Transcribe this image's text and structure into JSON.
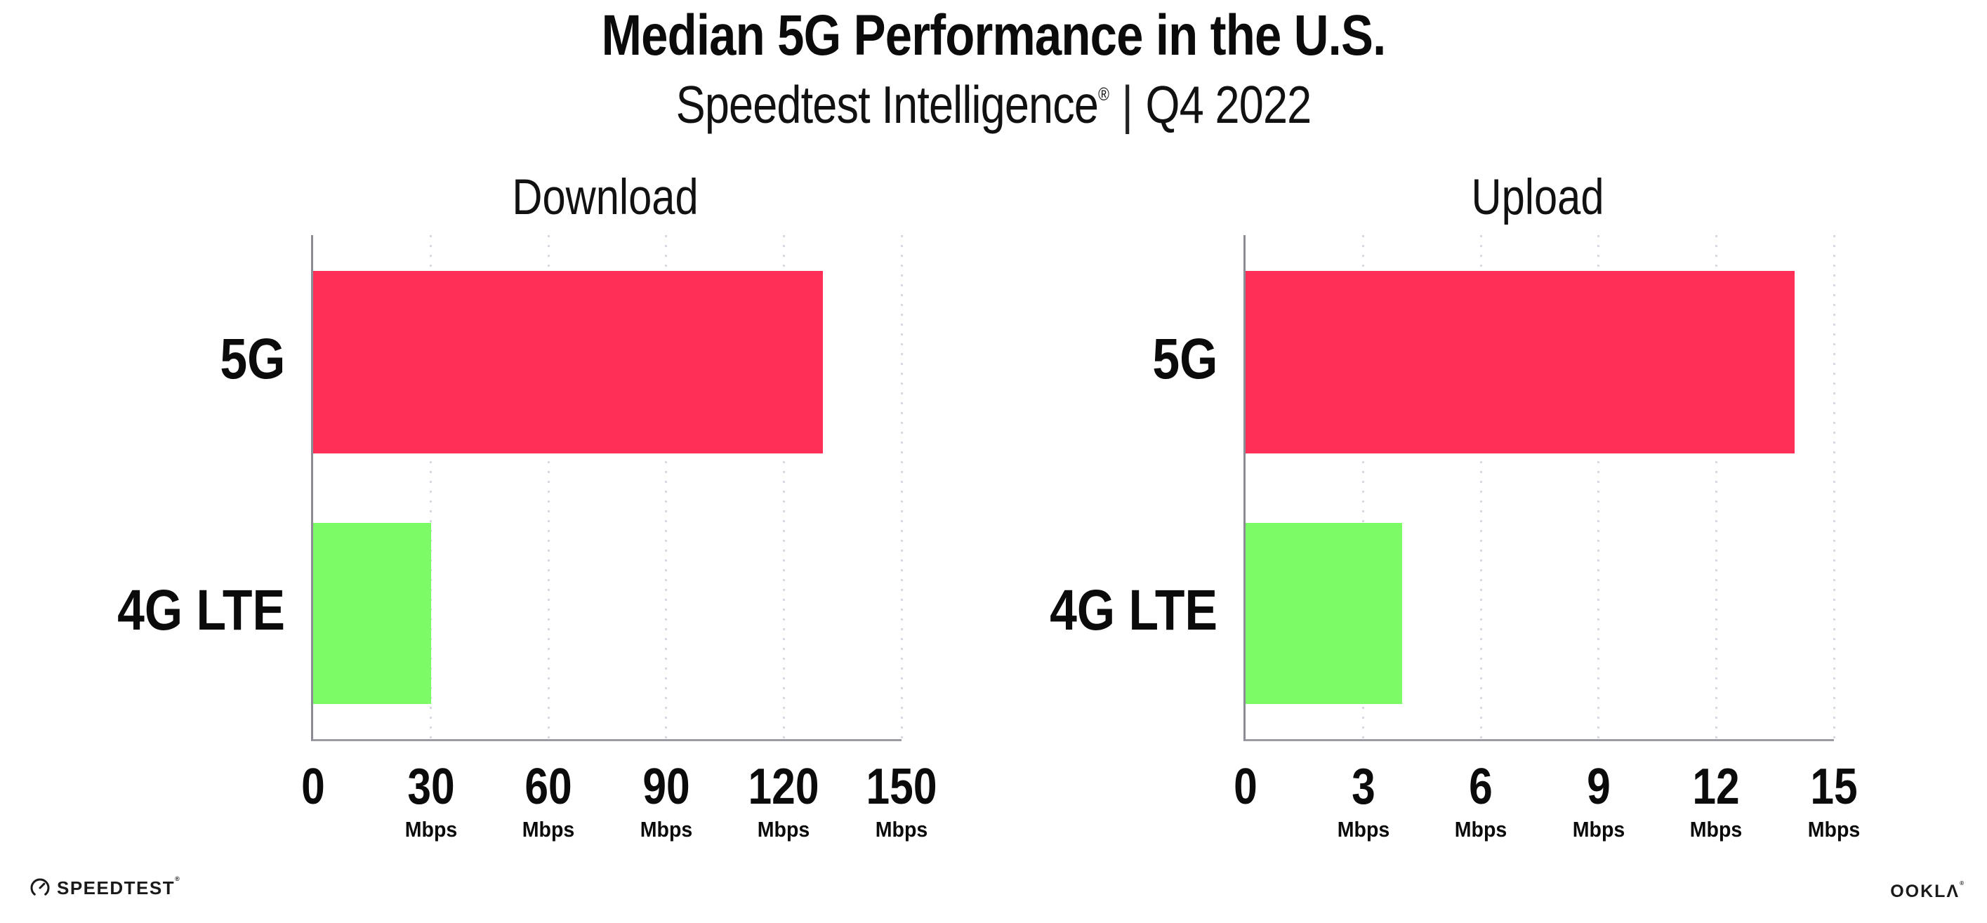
{
  "header": {
    "title": "Median 5G Performance in the U.S.",
    "subtitle_brand": "Speedtest Intelligence",
    "subtitle_reg": "®",
    "subtitle_sep": "|",
    "subtitle_period": "Q4 2022"
  },
  "footer": {
    "speedtest_label": "SPEEDTEST",
    "speedtest_reg": "®",
    "ookla_label": "OOKLΛ",
    "ookla_reg": "®"
  },
  "colors": {
    "bar_5g": "#FF2F57",
    "bar_4g_lte": "#7DFB66",
    "axis": "#9B9BA3",
    "gridline_dots": "#D8D8E2",
    "text": "#0B0B0B"
  },
  "chart_data": [
    {
      "type": "bar",
      "orientation": "horizontal",
      "title": "Download",
      "categories": [
        "5G",
        "4G LTE"
      ],
      "values": [
        130,
        30
      ],
      "unit": "Mbps",
      "xlabel": "",
      "ylabel": "",
      "xlim": [
        0,
        150
      ],
      "xticks": [
        0,
        30,
        60,
        90,
        120,
        150
      ],
      "grid": "vertical dotted gridlines at each tick",
      "legend": "none",
      "bar_colors": [
        "#FF2F57",
        "#7DFB66"
      ]
    },
    {
      "type": "bar",
      "orientation": "horizontal",
      "title": "Upload",
      "categories": [
        "5G",
        "4G LTE"
      ],
      "values": [
        14,
        4
      ],
      "unit": "Mbps",
      "xlabel": "",
      "ylabel": "",
      "xlim": [
        0,
        15
      ],
      "xticks": [
        0,
        3,
        6,
        9,
        12,
        15
      ],
      "grid": "vertical dotted gridlines at each tick",
      "legend": "none",
      "bar_colors": [
        "#FF2F57",
        "#7DFB66"
      ]
    }
  ]
}
